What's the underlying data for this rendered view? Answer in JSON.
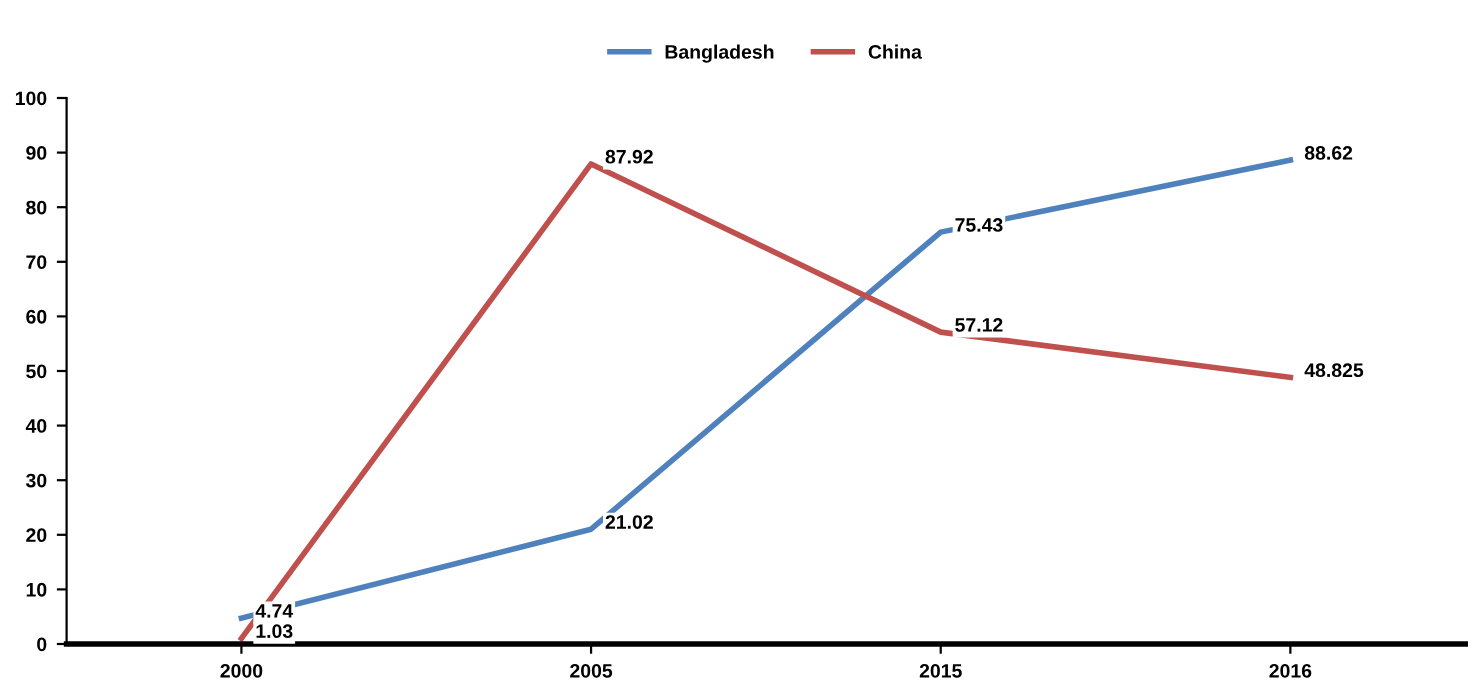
{
  "chart_data": {
    "type": "line",
    "categories": [
      "2000",
      "2005",
      "2015",
      "2016"
    ],
    "series": [
      {
        "name": "Bangladesh",
        "color": "#4f81bd",
        "values": [
          4.74,
          21.02,
          75.43,
          88.62
        ]
      },
      {
        "name": "China",
        "color": "#c0504d",
        "values": [
          1.03,
          87.92,
          57.12,
          48.825
        ]
      }
    ],
    "ylim": [
      0,
      100
    ],
    "yticks": [
      0,
      10,
      20,
      30,
      40,
      50,
      60,
      70,
      80,
      90,
      100
    ],
    "data_labels": true,
    "legend": "top",
    "grid": false,
    "marker": "none",
    "line_style": "solid"
  }
}
